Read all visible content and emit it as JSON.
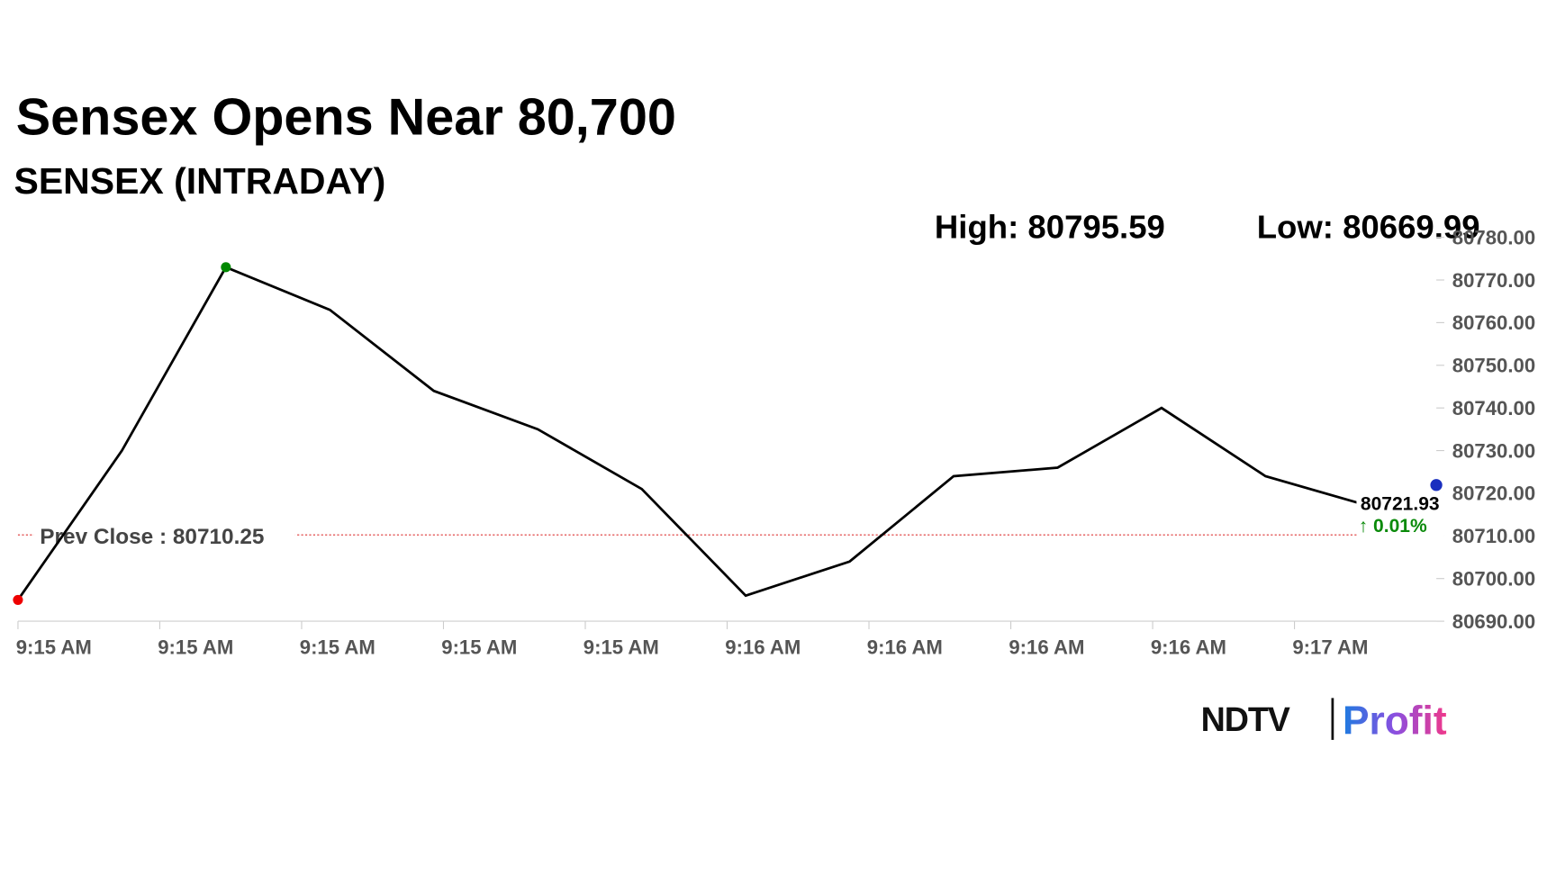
{
  "chart_data": {
    "type": "line",
    "title": "Sensex Opens Near 80,700",
    "subtitle": "SENSEX (INTRADAY)",
    "high_text": "High: 80795.59",
    "low_text": "Low: 80669.99",
    "prev_close": 80710.25,
    "prev_close_text": "Prev Close : 80710.25",
    "last_value": 80721.93,
    "change_text": "↑ 0.01%",
    "x_labels": [
      "9:15 AM",
      "9:15 AM",
      "9:15 AM",
      "9:15 AM",
      "9:15 AM",
      "9:16 AM",
      "9:16 AM",
      "9:16 AM",
      "9:16 AM",
      "9:17 AM"
    ],
    "values": [
      80695,
      80730,
      80773,
      80763,
      80744,
      80735,
      80721,
      80696,
      80704,
      80724,
      80726,
      80740,
      80724,
      80717
    ],
    "color": "#000000",
    "ylim": [
      80690,
      80780
    ],
    "yticks": [
      {
        "value": 80690,
        "label": "80690.00"
      },
      {
        "value": 80700,
        "label": "80700.00"
      },
      {
        "value": 80710,
        "label": "80710.00"
      },
      {
        "value": 80720,
        "label": "80720.00"
      },
      {
        "value": 80730,
        "label": "80730.00"
      },
      {
        "value": 80740,
        "label": "80740.00"
      },
      {
        "value": 80750,
        "label": "80750.00"
      },
      {
        "value": 80760,
        "label": "80760.00"
      },
      {
        "value": 80770,
        "label": "80770.00"
      },
      {
        "value": 80780,
        "label": "80780.00"
      }
    ],
    "logo": {
      "left": "NDTV",
      "right": "Profit"
    }
  }
}
